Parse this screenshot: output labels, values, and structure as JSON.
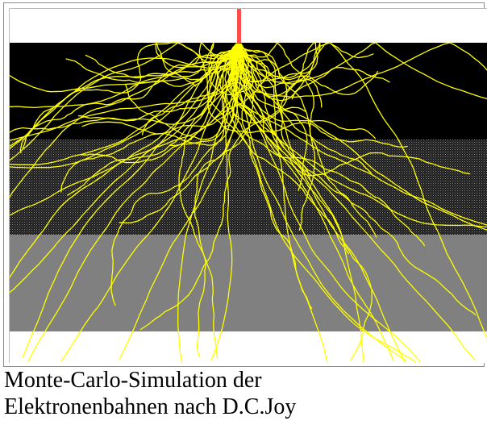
{
  "caption": {
    "lines": [
      "Monte-Carlo-Simulation der",
      "Elektronenbahnen nach D.C.Joy"
    ]
  }
}
